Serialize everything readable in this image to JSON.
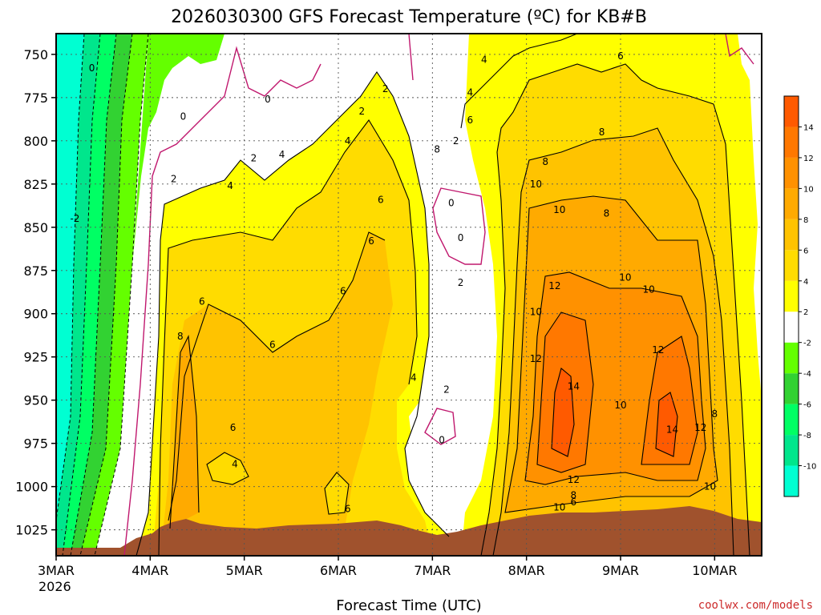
{
  "chart_data": {
    "type": "heatmap",
    "title": "2026030300 GFS Forecast Temperature (ºC) for KB#B",
    "xlabel": "Forecast Time (UTC)",
    "ylabel": "",
    "x_ticks": [
      "3MAR",
      "4MAR",
      "5MAR",
      "6MAR",
      "7MAR",
      "8MAR",
      "9MAR",
      "10MAR"
    ],
    "x_year_label": "2026",
    "x_range_days": [
      0,
      7.5
    ],
    "y_ticks": [
      750,
      775,
      800,
      825,
      850,
      875,
      900,
      925,
      950,
      975,
      1000,
      1025
    ],
    "y_range_hPa": [
      738,
      1040
    ],
    "grid": true,
    "colorbar": {
      "levels": [
        -10,
        -8,
        -6,
        -4,
        -2,
        2,
        4,
        6,
        8,
        10,
        12,
        14
      ],
      "colors": [
        "#00ffd2",
        "#00e68c",
        "#00ff64",
        "#32d232",
        "#64ff00",
        "#ffffff",
        "#ffff00",
        "#ffdc00",
        "#ffc300",
        "#ffaa00",
        "#ff9100",
        "#ff7800",
        "#ff5a00"
      ]
    },
    "contour_labels": [
      {
        "day": 0.38,
        "p": 758,
        "t": "0"
      },
      {
        "day": 1.35,
        "p": 786,
        "t": "0"
      },
      {
        "day": 2.25,
        "p": 776,
        "t": "0"
      },
      {
        "day": 3.25,
        "p": 783,
        "t": "2"
      },
      {
        "day": 3.5,
        "p": 770,
        "t": "2"
      },
      {
        "day": 1.25,
        "p": 822,
        "t": "2"
      },
      {
        "day": 2.1,
        "p": 810,
        "t": "2"
      },
      {
        "day": 4.25,
        "p": 800,
        "t": "2"
      },
      {
        "day": 4.2,
        "p": 836,
        "t": "0"
      },
      {
        "day": 4.3,
        "p": 856,
        "t": "0"
      },
      {
        "day": 4.3,
        "p": 882,
        "t": "2"
      },
      {
        "day": 4.15,
        "p": 944,
        "t": "2"
      },
      {
        "day": 4.1,
        "p": 973,
        "t": "0"
      },
      {
        "day": 2.4,
        "p": 808,
        "t": "4"
      },
      {
        "day": 1.85,
        "p": 826,
        "t": "4"
      },
      {
        "day": 3.1,
        "p": 800,
        "t": "4"
      },
      {
        "day": 4.4,
        "p": 772,
        "t": "4"
      },
      {
        "day": 4.55,
        "p": 753,
        "t": "4"
      },
      {
        "day": 3.8,
        "p": 937,
        "t": "4"
      },
      {
        "day": 1.9,
        "p": 987,
        "t": "4"
      },
      {
        "day": 4.4,
        "p": 788,
        "t": "6"
      },
      {
        "day": 3.45,
        "p": 834,
        "t": "6"
      },
      {
        "day": 3.35,
        "p": 858,
        "t": "6"
      },
      {
        "day": 1.55,
        "p": 893,
        "t": "6"
      },
      {
        "day": 2.3,
        "p": 918,
        "t": "6"
      },
      {
        "day": 1.88,
        "p": 966,
        "t": "6"
      },
      {
        "day": 3.05,
        "p": 887,
        "t": "6"
      },
      {
        "day": 3.1,
        "p": 1013,
        "t": "6"
      },
      {
        "day": 5.5,
        "p": 1009,
        "t": "6"
      },
      {
        "day": 6.0,
        "p": 751,
        "t": "6"
      },
      {
        "day": 1.32,
        "p": 913,
        "t": "8"
      },
      {
        "day": 4.05,
        "p": 805,
        "t": "8"
      },
      {
        "day": 5.2,
        "p": 812,
        "t": "8"
      },
      {
        "day": 5.8,
        "p": 795,
        "t": "8"
      },
      {
        "day": 5.85,
        "p": 842,
        "t": "8"
      },
      {
        "day": 7.0,
        "p": 958,
        "t": "8"
      },
      {
        "day": 5.5,
        "p": 1005,
        "t": "8"
      },
      {
        "day": 5.35,
        "p": 840,
        "t": "10"
      },
      {
        "day": 5.1,
        "p": 825,
        "t": "10"
      },
      {
        "day": 5.1,
        "p": 899,
        "t": "10"
      },
      {
        "day": 6.05,
        "p": 879,
        "t": "10"
      },
      {
        "day": 6.3,
        "p": 886,
        "t": "10"
      },
      {
        "day": 6.0,
        "p": 953,
        "t": "10"
      },
      {
        "day": 6.95,
        "p": 1000,
        "t": "10"
      },
      {
        "day": 5.35,
        "p": 1012,
        "t": "10"
      },
      {
        "day": 5.3,
        "p": 884,
        "t": "12"
      },
      {
        "day": 5.1,
        "p": 926,
        "t": "12"
      },
      {
        "day": 6.4,
        "p": 921,
        "t": "12"
      },
      {
        "day": 6.85,
        "p": 966,
        "t": "12"
      },
      {
        "day": 5.5,
        "p": 996,
        "t": "12"
      },
      {
        "day": 5.5,
        "p": 942,
        "t": "14"
      },
      {
        "day": 6.55,
        "p": 967,
        "t": "14"
      },
      {
        "day": 0.2,
        "p": 845,
        "t": "-2"
      }
    ],
    "contour_labels_note": "numeric labels printed on contour lines"
  },
  "credit": "coolwx.com/models"
}
